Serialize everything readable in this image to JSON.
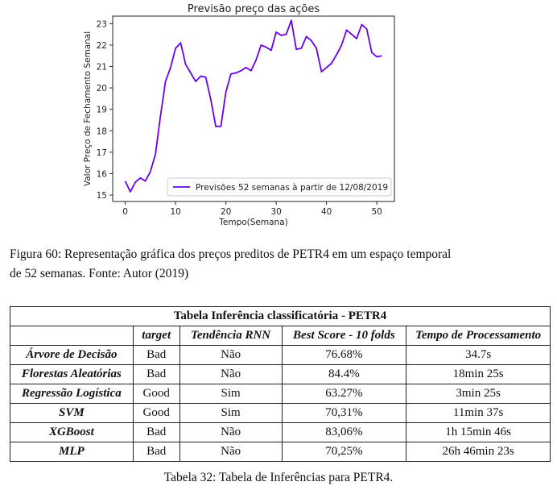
{
  "chart_data": {
    "type": "line",
    "title": "Previsão preço das ações",
    "xlabel": "Tempo(Semana)",
    "ylabel": "Valor Preço de Fechamento Semanal",
    "xlim": [
      -2.5,
      53.5
    ],
    "ylim": [
      14.7,
      23.35
    ],
    "xticks": [
      0,
      10,
      20,
      30,
      40,
      50
    ],
    "yticks": [
      15,
      16,
      17,
      18,
      19,
      20,
      21,
      22,
      23
    ],
    "legend_position": "lower-right",
    "color": "#6a00e8",
    "series": [
      {
        "name": "Previsões 52 semanas à partir de 12/08/2019",
        "x": [
          0,
          1,
          2,
          3,
          4,
          5,
          6,
          7,
          8,
          9,
          10,
          11,
          12,
          13,
          14,
          15,
          16,
          17,
          18,
          19,
          20,
          21,
          22,
          23,
          24,
          25,
          26,
          27,
          28,
          29,
          30,
          31,
          32,
          33,
          34,
          35,
          36,
          37,
          38,
          39,
          40,
          41,
          42,
          43,
          44,
          45,
          46,
          47,
          48,
          49,
          50,
          51
        ],
        "y": [
          15.65,
          15.15,
          15.6,
          15.8,
          15.65,
          16.1,
          16.9,
          18.7,
          20.3,
          20.95,
          21.85,
          22.1,
          21.1,
          20.7,
          20.3,
          20.55,
          20.5,
          19.45,
          18.2,
          18.2,
          19.8,
          20.65,
          20.7,
          20.8,
          20.95,
          20.8,
          21.3,
          22.0,
          21.9,
          21.75,
          22.6,
          22.45,
          22.5,
          23.15,
          21.8,
          21.85,
          22.4,
          22.2,
          21.85,
          20.75,
          20.95,
          21.15,
          21.55,
          22.0,
          22.7,
          22.5,
          22.3,
          22.95,
          22.75,
          21.65,
          21.45,
          21.5
        ]
      }
    ]
  },
  "figure_caption": {
    "line1": "Figura 60: Representação gráfica dos preços preditos de PETR4 em um espaço temporal",
    "line2": "de 52 semanas. Fonte: Autor (2019)"
  },
  "table": {
    "title": "Tabela Inferência classificatória - PETR4",
    "headers": [
      "",
      "target",
      "Tendência RNN",
      "Best Score - 10 folds",
      "Tempo de Processamento"
    ],
    "rows": [
      [
        "Árvore de Decisão",
        "Bad",
        "Não",
        "76.68%",
        "34.7s"
      ],
      [
        "Florestas Aleatórias",
        "Bad",
        "Não",
        "84.4%",
        "18min 25s"
      ],
      [
        "Regressão Logística",
        "Good",
        "Sim",
        "63.27%",
        "3min 25s"
      ],
      [
        "SVM",
        "Good",
        "Sim",
        "70,31%",
        "11min 37s"
      ],
      [
        "XGBoost",
        "Bad",
        "Não",
        "83,06%",
        "1h 15min 46s"
      ],
      [
        "MLP",
        "Bad",
        "Não",
        "70,25%",
        "26h 46min 23s"
      ]
    ],
    "caption": "Tabela 32: Tabela de Inferências para PETR4."
  }
}
